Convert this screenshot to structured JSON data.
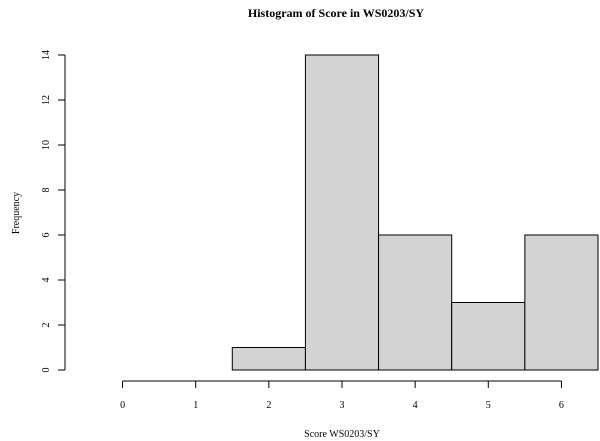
{
  "chart_data": {
    "type": "bar",
    "title": "Histogram of Score in WS0203/SY",
    "xlabel": "Score WS0203/SY",
    "ylabel": "Frequency",
    "bins": [
      {
        "start": -0.5,
        "end": 0.5,
        "count": 0
      },
      {
        "start": 0.5,
        "end": 1.5,
        "count": 0
      },
      {
        "start": 1.5,
        "end": 2.5,
        "count": 1
      },
      {
        "start": 2.5,
        "end": 3.5,
        "count": 14
      },
      {
        "start": 3.5,
        "end": 4.5,
        "count": 6
      },
      {
        "start": 4.5,
        "end": 5.5,
        "count": 3
      },
      {
        "start": 5.5,
        "end": 6.5,
        "count": 6
      }
    ],
    "xticks": [
      0,
      1,
      2,
      3,
      4,
      5,
      6
    ],
    "yticks": [
      0,
      2,
      4,
      6,
      8,
      10,
      12,
      14
    ],
    "xlim": [
      -0.5,
      6.5
    ],
    "ylim": [
      0,
      14
    ],
    "bar_color": "#d3d3d3",
    "grid": false,
    "legend": "none"
  }
}
